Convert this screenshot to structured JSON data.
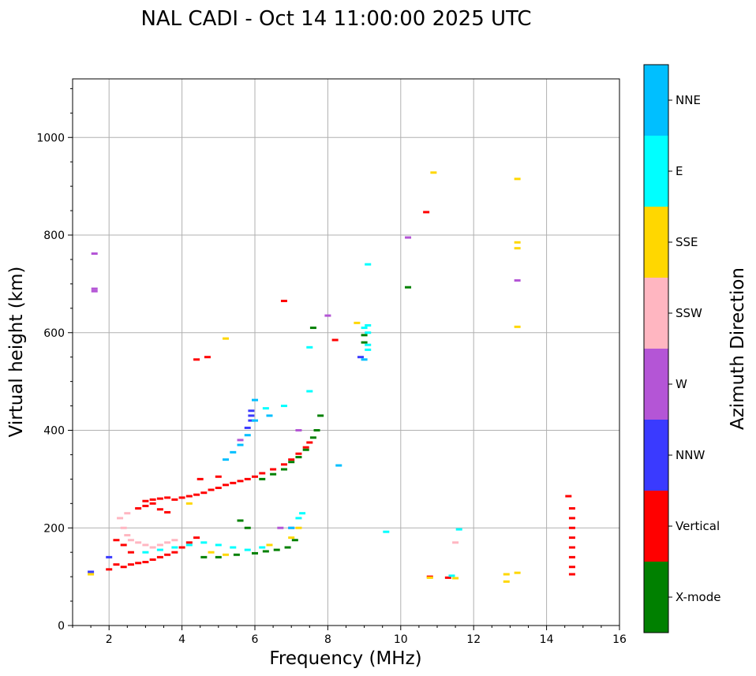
{
  "chart_data": {
    "type": "scatter",
    "title": "NAL CADI - Oct 14 11:00:00 2025 UTC",
    "xlabel": "Frequency (MHz)",
    "ylabel": "Virtual height (km)",
    "xlim": [
      1,
      16
    ],
    "ylim": [
      0,
      1120
    ],
    "xticks": [
      2,
      4,
      6,
      8,
      10,
      12,
      14,
      16
    ],
    "yticks": [
      0,
      200,
      400,
      600,
      800,
      1000
    ],
    "grid": true,
    "colorbar": {
      "label": "Azimuth Direction",
      "categories": [
        {
          "name": "X-mode",
          "color": "#008000"
        },
        {
          "name": "Vertical",
          "color": "#ff0000"
        },
        {
          "name": "NNW",
          "color": "#3a3aff"
        },
        {
          "name": "W",
          "color": "#b455d6"
        },
        {
          "name": "SSW",
          "color": "#ffb6c1"
        },
        {
          "name": "SSE",
          "color": "#ffd700"
        },
        {
          "name": "E",
          "color": "#00ffff"
        },
        {
          "name": "NNE",
          "color": "#00bfff"
        }
      ]
    },
    "series": [
      {
        "name": "Vertical",
        "color": "#ff0000",
        "points": [
          [
            2.0,
            115
          ],
          [
            2.2,
            125
          ],
          [
            2.4,
            120
          ],
          [
            2.6,
            125
          ],
          [
            2.8,
            128
          ],
          [
            3.0,
            130
          ],
          [
            3.2,
            135
          ],
          [
            3.4,
            140
          ],
          [
            3.6,
            145
          ],
          [
            3.8,
            150
          ],
          [
            4.0,
            160
          ],
          [
            4.2,
            170
          ],
          [
            4.4,
            180
          ],
          [
            3.0,
            255
          ],
          [
            3.2,
            258
          ],
          [
            3.4,
            260
          ],
          [
            3.6,
            262
          ],
          [
            3.8,
            258
          ],
          [
            4.0,
            262
          ],
          [
            4.2,
            265
          ],
          [
            4.4,
            268
          ],
          [
            4.6,
            272
          ],
          [
            4.8,
            278
          ],
          [
            5.0,
            282
          ],
          [
            5.2,
            288
          ],
          [
            5.4,
            292
          ],
          [
            5.6,
            296
          ],
          [
            5.8,
            300
          ],
          [
            6.0,
            305
          ],
          [
            6.2,
            312
          ],
          [
            6.5,
            320
          ],
          [
            6.8,
            330
          ],
          [
            7.0,
            340
          ],
          [
            7.2,
            352
          ],
          [
            7.4,
            365
          ],
          [
            7.5,
            375
          ],
          [
            2.8,
            240
          ],
          [
            3.0,
            245
          ],
          [
            3.2,
            250
          ],
          [
            3.4,
            238
          ],
          [
            3.6,
            232
          ],
          [
            2.2,
            175
          ],
          [
            2.4,
            165
          ],
          [
            2.6,
            150
          ],
          [
            4.5,
            300
          ],
          [
            5.0,
            305
          ],
          [
            4.4,
            545
          ],
          [
            4.7,
            550
          ],
          [
            6.8,
            665
          ],
          [
            8.2,
            585
          ],
          [
            10.7,
            847
          ],
          [
            14.6,
            265
          ],
          [
            14.7,
            240
          ],
          [
            14.7,
            220
          ],
          [
            14.7,
            200
          ],
          [
            14.7,
            180
          ],
          [
            14.7,
            160
          ],
          [
            14.7,
            140
          ],
          [
            14.7,
            120
          ],
          [
            14.7,
            105
          ],
          [
            11.3,
            98
          ],
          [
            10.8,
            100
          ]
        ]
      },
      {
        "name": "X-mode",
        "color": "#008000",
        "points": [
          [
            4.6,
            140
          ],
          [
            5.0,
            140
          ],
          [
            5.5,
            145
          ],
          [
            6.0,
            148
          ],
          [
            6.3,
            152
          ],
          [
            6.6,
            155
          ],
          [
            6.9,
            160
          ],
          [
            7.1,
            175
          ],
          [
            6.2,
            300
          ],
          [
            6.5,
            310
          ],
          [
            6.8,
            320
          ],
          [
            7.0,
            335
          ],
          [
            7.2,
            345
          ],
          [
            7.4,
            360
          ],
          [
            7.6,
            385
          ],
          [
            7.7,
            400
          ],
          [
            7.8,
            430
          ],
          [
            7.6,
            610
          ],
          [
            9.0,
            580
          ],
          [
            9.0,
            595
          ],
          [
            10.2,
            693
          ],
          [
            5.8,
            200
          ],
          [
            5.6,
            215
          ]
        ]
      },
      {
        "name": "NNW",
        "color": "#3a3aff",
        "points": [
          [
            1.5,
            110
          ],
          [
            2.0,
            140
          ],
          [
            5.9,
            440
          ],
          [
            5.9,
            430
          ],
          [
            5.9,
            420
          ],
          [
            5.8,
            405
          ],
          [
            8.9,
            550
          ]
        ]
      },
      {
        "name": "W",
        "color": "#b455d6",
        "points": [
          [
            1.6,
            762
          ],
          [
            1.6,
            690
          ],
          [
            1.6,
            685
          ],
          [
            10.2,
            795
          ],
          [
            13.2,
            707
          ],
          [
            7.2,
            400
          ],
          [
            6.7,
            200
          ],
          [
            7.0,
            200
          ],
          [
            5.6,
            380
          ],
          [
            8.0,
            635
          ]
        ]
      },
      {
        "name": "SSW",
        "color": "#ffb6c1",
        "points": [
          [
            2.4,
            200
          ],
          [
            2.5,
            185
          ],
          [
            2.6,
            175
          ],
          [
            2.8,
            170
          ],
          [
            3.0,
            165
          ],
          [
            3.2,
            160
          ],
          [
            3.4,
            165
          ],
          [
            3.6,
            170
          ],
          [
            3.8,
            175
          ],
          [
            2.3,
            220
          ],
          [
            2.5,
            230
          ],
          [
            11.5,
            170
          ]
        ]
      },
      {
        "name": "SSE",
        "color": "#ffd700",
        "points": [
          [
            1.5,
            105
          ],
          [
            4.2,
            250
          ],
          [
            4.8,
            150
          ],
          [
            5.2,
            145
          ],
          [
            6.4,
            165
          ],
          [
            7.0,
            180
          ],
          [
            7.2,
            200
          ],
          [
            5.2,
            588
          ],
          [
            8.8,
            620
          ],
          [
            10.9,
            928
          ],
          [
            13.2,
            915
          ],
          [
            13.2,
            785
          ],
          [
            13.2,
            773
          ],
          [
            13.2,
            612
          ],
          [
            12.9,
            105
          ],
          [
            13.2,
            108
          ],
          [
            12.9,
            90
          ],
          [
            10.8,
            98
          ],
          [
            11.5,
            97
          ]
        ]
      },
      {
        "name": "E",
        "color": "#00ffff",
        "points": [
          [
            3.0,
            150
          ],
          [
            3.4,
            155
          ],
          [
            3.8,
            160
          ],
          [
            4.2,
            165
          ],
          [
            4.6,
            170
          ],
          [
            5.0,
            165
          ],
          [
            5.4,
            160
          ],
          [
            5.8,
            155
          ],
          [
            6.2,
            160
          ],
          [
            7.2,
            220
          ],
          [
            7.3,
            230
          ],
          [
            6.3,
            445
          ],
          [
            6.8,
            450
          ],
          [
            7.5,
            480
          ],
          [
            7.5,
            570
          ],
          [
            9.0,
            610
          ],
          [
            9.1,
            565
          ],
          [
            9.1,
            575
          ],
          [
            9.1,
            600
          ],
          [
            9.1,
            615
          ],
          [
            9.1,
            740
          ],
          [
            9.6,
            192
          ],
          [
            11.6,
            197
          ],
          [
            11.4,
            102
          ]
        ]
      },
      {
        "name": "NNE",
        "color": "#00bfff",
        "points": [
          [
            5.2,
            340
          ],
          [
            5.4,
            355
          ],
          [
            5.6,
            370
          ],
          [
            5.8,
            390
          ],
          [
            6.0,
            420
          ],
          [
            6.0,
            462
          ],
          [
            6.4,
            430
          ],
          [
            9.0,
            545
          ],
          [
            8.3,
            328
          ],
          [
            7.0,
            200
          ]
        ]
      }
    ]
  }
}
